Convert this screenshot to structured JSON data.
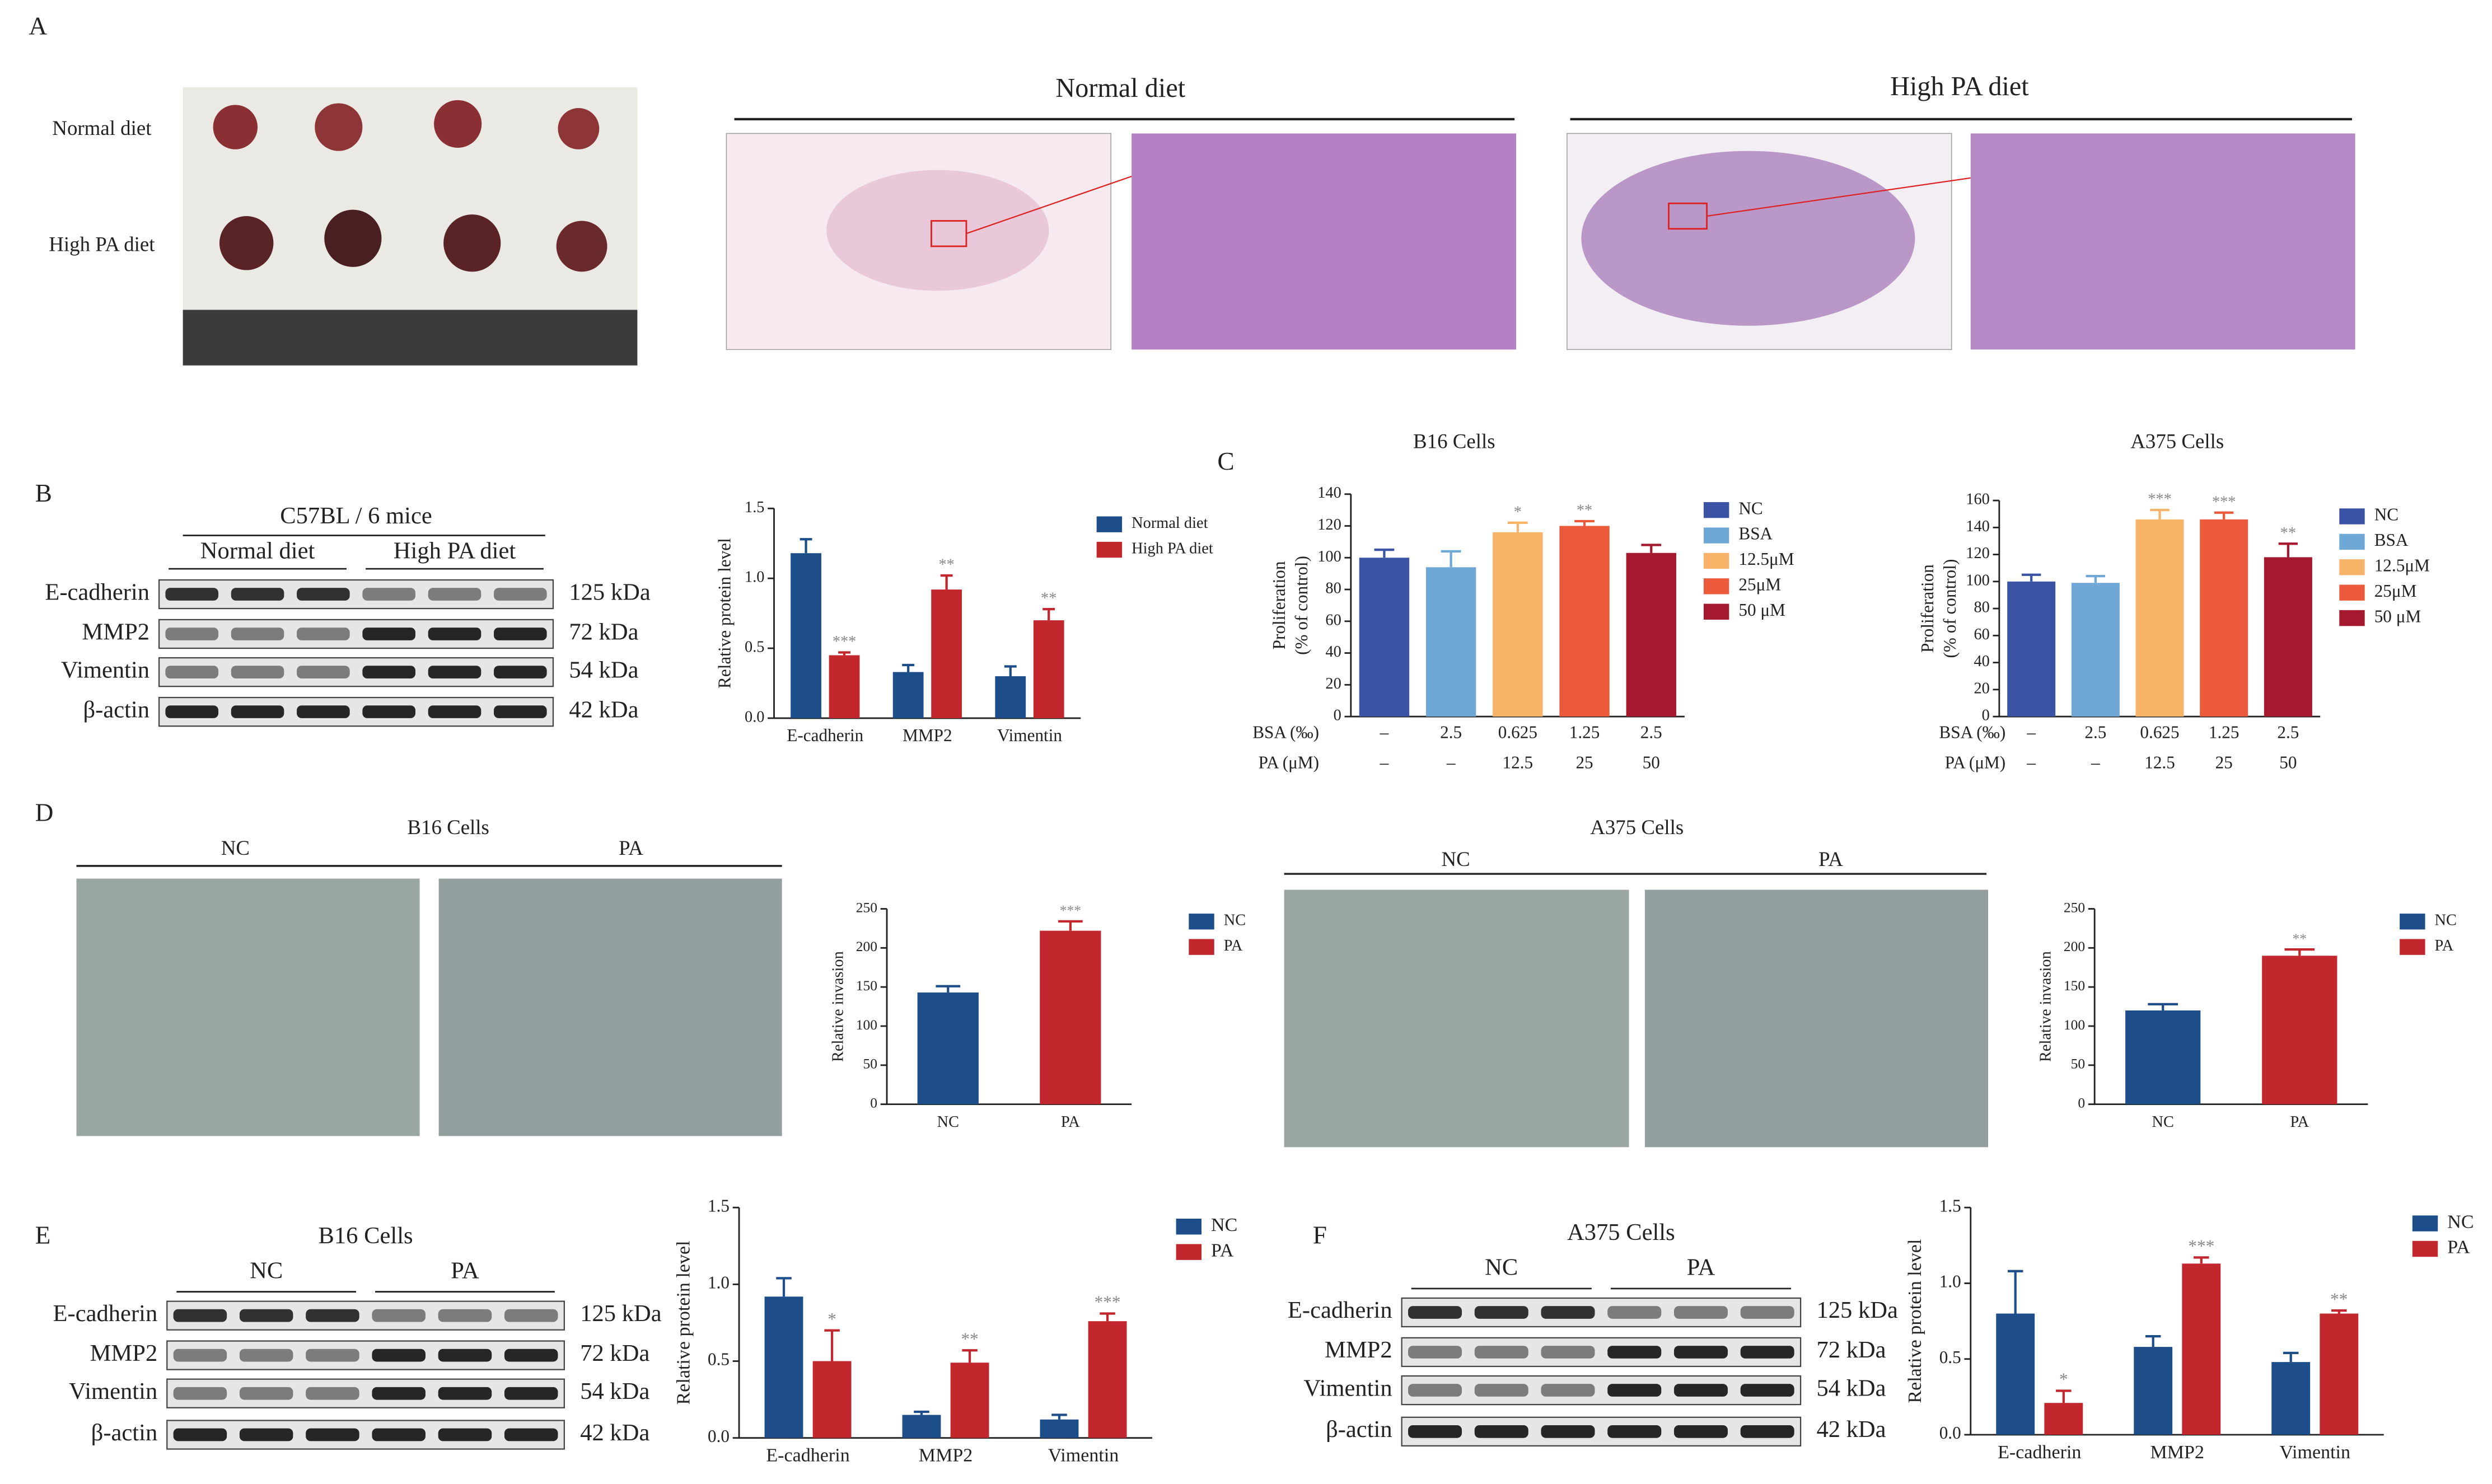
{
  "panel_labels": [
    "A",
    "B",
    "C",
    "D",
    "E",
    "F"
  ],
  "figure_a": {
    "row_labels": [
      "Normal diet",
      "High PA diet"
    ],
    "histology_titles": [
      "Normal diet",
      "High PA diet"
    ]
  },
  "blots": [
    {
      "title": "C57BL / 6 mice",
      "groups": [
        "Normal diet",
        "High PA diet"
      ],
      "rows": [
        {
          "protein": "E-cadherin",
          "size": "125 kDa"
        },
        {
          "protein": "MMP2",
          "size": "72 kDa"
        },
        {
          "protein": "Vimentin",
          "size": "54 kDa"
        },
        {
          "protein": "β-actin",
          "size": "42 kDa"
        }
      ]
    },
    {
      "title": "B16 Cells",
      "groups": [
        "NC",
        "PA"
      ],
      "rows": [
        {
          "protein": "E-cadherin",
          "size": "125 kDa"
        },
        {
          "protein": "MMP2",
          "size": "72 kDa"
        },
        {
          "protein": "Vimentin",
          "size": "54 kDa"
        },
        {
          "protein": "β-actin",
          "size": "42 kDa"
        }
      ]
    },
    {
      "title": "A375 Cells",
      "groups": [
        "NC",
        "PA"
      ],
      "rows": [
        {
          "protein": "E-cadherin",
          "size": "125 kDa"
        },
        {
          "protein": "MMP2",
          "size": "72 kDa"
        },
        {
          "protein": "Vimentin",
          "size": "54 kDa"
        },
        {
          "protein": "β-actin",
          "size": "42 kDa"
        }
      ]
    }
  ],
  "invasion_photos": [
    {
      "title": "B16 Cells",
      "groups": [
        "NC",
        "PA"
      ]
    },
    {
      "title": "A375 Cells",
      "groups": [
        "NC",
        "PA"
      ]
    }
  ],
  "chart_data": [
    {
      "type": "bar",
      "y_label": [
        "Relative protein level"
      ],
      "categories": [
        "E-cadherin",
        "MMP2",
        "Vimentin"
      ],
      "series": [
        {
          "name": "Normal diet",
          "color": "#1d4e89",
          "values": [
            1.18,
            0.33,
            0.3
          ],
          "errors": [
            0.1,
            0.05,
            0.07
          ]
        },
        {
          "name": "High PA diet",
          "color": "#c1272d",
          "values": [
            0.45,
            0.92,
            0.7
          ],
          "errors": [
            0.02,
            0.1,
            0.08
          ],
          "significance": [
            "***",
            "**",
            "**"
          ]
        }
      ],
      "ylim": [
        0,
        1.5
      ],
      "yticks": [
        {
          "value": 0,
          "label": "0.0"
        },
        0.5,
        {
          "value": 1,
          "label": "1.0"
        },
        1.5
      ]
    },
    {
      "type": "bar",
      "title": "B16 Cells",
      "y_label": [
        "Proliferation",
        "(% of control)"
      ],
      "categories": [
        "NC",
        "BSA",
        "12.5μM",
        "25μM",
        "50 μM"
      ],
      "colors": [
        "#3a53a4",
        "#6fa8d6",
        "#f7b469",
        "#eb5a3a",
        "#a5192e"
      ],
      "values": [
        100,
        94,
        116,
        120,
        103
      ],
      "errors": [
        5,
        10,
        6,
        3,
        5
      ],
      "significance": [
        null,
        null,
        "*",
        "**",
        null
      ],
      "table": {
        "row_labels": [
          "BSA (‰)",
          "PA (μM)"
        ],
        "rows": [
          [
            "–",
            "2.5",
            "0.625",
            "1.25",
            "2.5"
          ],
          [
            "–",
            "–",
            "12.5",
            "25",
            "50"
          ]
        ]
      },
      "ylim": [
        0,
        140
      ],
      "yticks": [
        0,
        20,
        40,
        60,
        80,
        100,
        120,
        140
      ]
    },
    {
      "type": "bar",
      "title": "A375 Cells",
      "y_label": [
        "Proliferation",
        "(% of control)"
      ],
      "categories": [
        "NC",
        "BSA",
        "12.5μM",
        "25μM",
        "50 μM"
      ],
      "colors": [
        "#3a53a4",
        "#6fa8d6",
        "#f7b469",
        "#eb5a3a",
        "#a5192e"
      ],
      "values": [
        100,
        99,
        146,
        146,
        118
      ],
      "errors": [
        5,
        5,
        7,
        5,
        10
      ],
      "significance": [
        null,
        null,
        "***",
        "***",
        "**"
      ],
      "table": {
        "row_labels": [
          "BSA (‰)",
          "PA (μM)"
        ],
        "rows": [
          [
            "–",
            "2.5",
            "0.625",
            "1.25",
            "2.5"
          ],
          [
            "–",
            "–",
            "12.5",
            "25",
            "50"
          ]
        ]
      },
      "ylim": [
        0,
        160
      ],
      "yticks": [
        0,
        20,
        40,
        60,
        80,
        100,
        120,
        140,
        160
      ]
    },
    {
      "type": "bar",
      "y_label": [
        "Relative invasion"
      ],
      "categories": [
        "NC",
        "PA"
      ],
      "colors": [
        "#1d4e89",
        "#c1272d"
      ],
      "values": [
        143,
        222
      ],
      "errors": [
        8,
        12
      ],
      "significance": [
        null,
        "***"
      ],
      "ylim": [
        0,
        250
      ],
      "yticks": [
        0,
        50,
        100,
        150,
        200,
        250
      ]
    },
    {
      "type": "bar",
      "y_label": [
        "Relative invasion"
      ],
      "categories": [
        "NC",
        "PA"
      ],
      "colors": [
        "#1d4e89",
        "#c1272d"
      ],
      "values": [
        120,
        190
      ],
      "errors": [
        8,
        8
      ],
      "significance": [
        null,
        "**"
      ],
      "ylim": [
        0,
        250
      ],
      "yticks": [
        0,
        50,
        100,
        150,
        200,
        250
      ]
    },
    {
      "type": "bar",
      "y_label": [
        "Relative protein level"
      ],
      "categories": [
        "E-cadherin",
        "MMP2",
        "Vimentin"
      ],
      "series": [
        {
          "name": "NC",
          "color": "#1d4e89",
          "values": [
            0.92,
            0.15,
            0.12
          ],
          "errors": [
            0.12,
            0.02,
            0.03
          ]
        },
        {
          "name": "PA",
          "color": "#c1272d",
          "values": [
            0.5,
            0.49,
            0.76
          ],
          "errors": [
            0.2,
            0.08,
            0.05
          ],
          "significance": [
            "*",
            "**",
            "***"
          ]
        }
      ],
      "ylim": [
        0,
        1.5
      ],
      "yticks": [
        {
          "value": 0,
          "label": "0.0"
        },
        0.5,
        {
          "value": 1,
          "label": "1.0"
        },
        1.5
      ]
    },
    {
      "type": "bar",
      "y_label": [
        "Relative protein level"
      ],
      "categories": [
        "E-cadherin",
        "MMP2",
        "Vimentin"
      ],
      "series": [
        {
          "name": "NC",
          "color": "#1d4e89",
          "values": [
            0.8,
            0.58,
            0.48
          ],
          "errors": [
            0.28,
            0.07,
            0.06
          ]
        },
        {
          "name": "PA",
          "color": "#c1272d",
          "values": [
            0.21,
            1.13,
            0.8
          ],
          "errors": [
            0.08,
            0.04,
            0.02
          ],
          "significance": [
            "*",
            "***",
            "**"
          ]
        }
      ],
      "ylim": [
        0,
        1.5
      ],
      "yticks": [
        {
          "value": 0,
          "label": "0.0"
        },
        0.5,
        {
          "value": 1,
          "label": "1.0"
        },
        1.5
      ]
    }
  ]
}
